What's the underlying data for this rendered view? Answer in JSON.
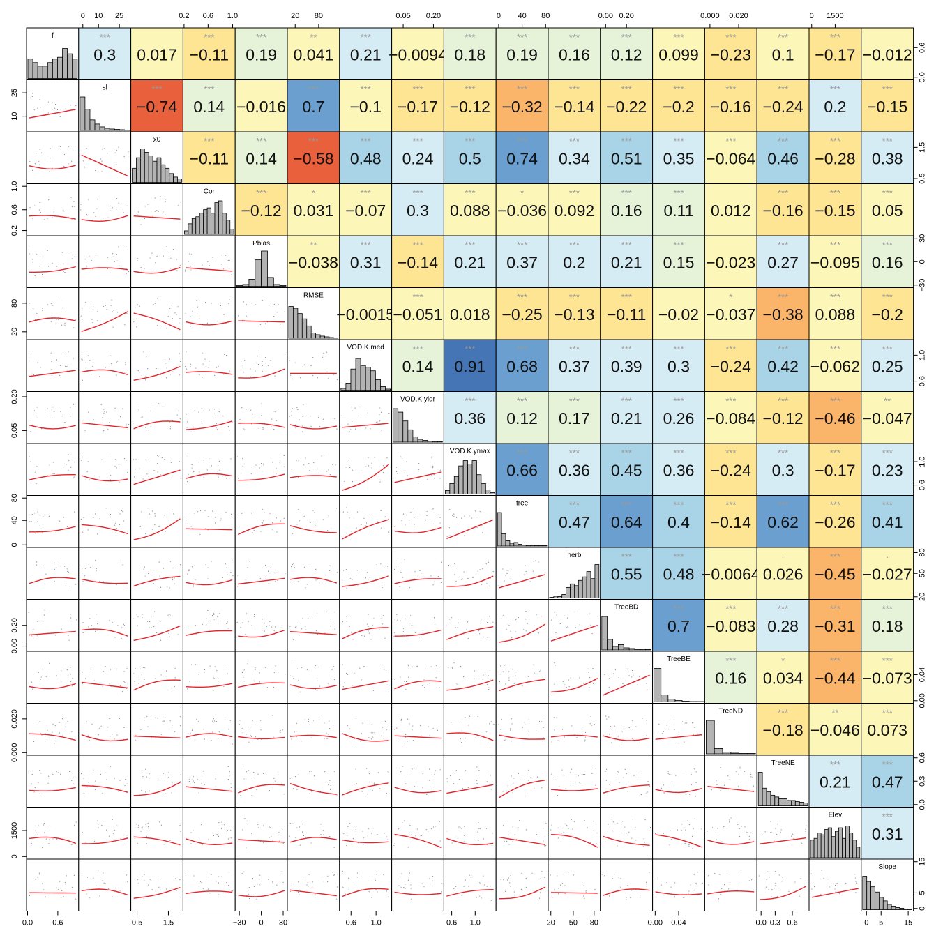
{
  "chart_data": {
    "type": "scatter-matrix",
    "variables": [
      "f",
      "sl",
      "x0",
      "Cor",
      "Pbias",
      "RMSE",
      "VOD.K.med",
      "VOD.K.yiqr",
      "VOD.K.ymax",
      "tree",
      "herb",
      "TreeBD",
      "TreeBE",
      "TreeND",
      "TreeNE",
      "Elev",
      "Slope"
    ],
    "correlations": [
      [
        null,
        "0.3",
        "0.017",
        "−0.11",
        "0.19",
        "0.041",
        "0.21",
        "−0.0094",
        "0.18",
        "0.19",
        "0.16",
        "0.12",
        "0.099",
        "−0.23",
        "0.1",
        "−0.17",
        "−0.012"
      ],
      [
        null,
        null,
        "−0.74",
        "0.14",
        "−0.016",
        "0.7",
        "−0.1",
        "−0.17",
        "−0.12",
        "−0.32",
        "−0.14",
        "−0.22",
        "−0.2",
        "−0.16",
        "−0.24",
        "0.2",
        "−0.15"
      ],
      [
        null,
        null,
        null,
        "−0.11",
        "0.14",
        "−0.58",
        "0.48",
        "0.24",
        "0.5",
        "0.74",
        "0.34",
        "0.51",
        "0.35",
        "−0.064",
        "0.46",
        "−0.28",
        "0.38"
      ],
      [
        null,
        null,
        null,
        null,
        "−0.12",
        "0.031",
        "−0.07",
        "0.3",
        "0.088",
        "−0.036",
        "0.092",
        "0.16",
        "0.11",
        "0.012",
        "−0.16",
        "−0.15",
        "0.05"
      ],
      [
        null,
        null,
        null,
        null,
        null,
        "−0.038",
        "0.31",
        "−0.14",
        "0.21",
        "0.37",
        "0.2",
        "0.21",
        "0.15",
        "−0.023",
        "0.27",
        "−0.095",
        "0.16"
      ],
      [
        null,
        null,
        null,
        null,
        null,
        null,
        "−0.0015",
        "−0.051",
        "0.018",
        "−0.25",
        "−0.13",
        "−0.11",
        "−0.02",
        "−0.037",
        "−0.38",
        "0.088",
        "−0.2"
      ],
      [
        null,
        null,
        null,
        null,
        null,
        null,
        null,
        "0.14",
        "0.91",
        "0.68",
        "0.37",
        "0.39",
        "0.3",
        "−0.24",
        "0.42",
        "−0.062",
        "0.25"
      ],
      [
        null,
        null,
        null,
        null,
        null,
        null,
        null,
        null,
        "0.36",
        "0.12",
        "0.17",
        "0.21",
        "0.26",
        "−0.084",
        "−0.12",
        "−0.46",
        "−0.047"
      ],
      [
        null,
        null,
        null,
        null,
        null,
        null,
        null,
        null,
        null,
        "0.66",
        "0.36",
        "0.45",
        "0.36",
        "−0.24",
        "0.3",
        "−0.17",
        "0.23"
      ],
      [
        null,
        null,
        null,
        null,
        null,
        null,
        null,
        null,
        null,
        null,
        "0.47",
        "0.64",
        "0.4",
        "−0.14",
        "0.62",
        "−0.26",
        "0.41"
      ],
      [
        null,
        null,
        null,
        null,
        null,
        null,
        null,
        null,
        null,
        null,
        null,
        "0.55",
        "0.48",
        "−0.0064",
        "0.026",
        "−0.45",
        "−0.027"
      ],
      [
        null,
        null,
        null,
        null,
        null,
        null,
        null,
        null,
        null,
        null,
        null,
        null,
        "0.7",
        "−0.083",
        "0.28",
        "−0.31",
        "0.18"
      ],
      [
        null,
        null,
        null,
        null,
        null,
        null,
        null,
        null,
        null,
        null,
        null,
        null,
        null,
        "0.16",
        "0.034",
        "−0.44",
        "−0.073"
      ],
      [
        null,
        null,
        null,
        null,
        null,
        null,
        null,
        null,
        null,
        null,
        null,
        null,
        null,
        null,
        "−0.18",
        "−0.046",
        "0.073"
      ],
      [
        null,
        null,
        null,
        null,
        null,
        null,
        null,
        null,
        null,
        null,
        null,
        null,
        null,
        null,
        null,
        "0.21",
        "0.47"
      ],
      [
        null,
        null,
        null,
        null,
        null,
        null,
        null,
        null,
        null,
        null,
        null,
        null,
        null,
        null,
        null,
        null,
        "0.31"
      ],
      [
        null,
        null,
        null,
        null,
        null,
        null,
        null,
        null,
        null,
        null,
        null,
        null,
        null,
        null,
        null,
        null,
        null
      ]
    ],
    "significance": [
      [
        null,
        "***",
        "",
        "***",
        "***",
        "**",
        "***",
        "",
        "***",
        "***",
        "***",
        "***",
        "***",
        "***",
        "***",
        "***",
        ""
      ],
      [
        null,
        null,
        "***",
        "***",
        "",
        "***",
        "***",
        "***",
        "***",
        "***",
        "***",
        "***",
        "***",
        "***",
        "***",
        "***",
        "***"
      ],
      [
        null,
        null,
        null,
        "***",
        "***",
        "***",
        "***",
        "***",
        "***",
        "***",
        "***",
        "***",
        "***",
        "***",
        "***",
        "***",
        "***"
      ],
      [
        null,
        null,
        null,
        null,
        "***",
        "*",
        "***",
        "***",
        "***",
        "*",
        "***",
        "***",
        "***",
        "",
        "***",
        "***",
        "***"
      ],
      [
        null,
        null,
        null,
        null,
        null,
        "**",
        "***",
        "***",
        "***",
        "***",
        "***",
        "***",
        "***",
        "",
        "***",
        "***",
        "***"
      ],
      [
        null,
        null,
        null,
        null,
        null,
        null,
        "",
        "***",
        "",
        "***",
        "***",
        "***",
        "",
        "*",
        "***",
        "***",
        "***"
      ],
      [
        null,
        null,
        null,
        null,
        null,
        null,
        null,
        "***",
        "***",
        "***",
        "***",
        "***",
        "***",
        "***",
        "***",
        "***",
        "***"
      ],
      [
        null,
        null,
        null,
        null,
        null,
        null,
        null,
        null,
        "***",
        "***",
        "***",
        "***",
        "***",
        "***",
        "***",
        "***",
        "**"
      ],
      [
        null,
        null,
        null,
        null,
        null,
        null,
        null,
        null,
        null,
        "***",
        "***",
        "***",
        "***",
        "***",
        "***",
        "***",
        "***"
      ],
      [
        null,
        null,
        null,
        null,
        null,
        null,
        null,
        null,
        null,
        null,
        "***",
        "***",
        "***",
        "***",
        "***",
        "***",
        "***"
      ],
      [
        null,
        null,
        null,
        null,
        null,
        null,
        null,
        null,
        null,
        null,
        null,
        "***",
        "***",
        "",
        "·",
        "***",
        "·"
      ],
      [
        null,
        null,
        null,
        null,
        null,
        null,
        null,
        null,
        null,
        null,
        null,
        null,
        "***",
        "***",
        "***",
        "***",
        "***"
      ],
      [
        null,
        null,
        null,
        null,
        null,
        null,
        null,
        null,
        null,
        null,
        null,
        null,
        null,
        "***",
        "*",
        "***",
        "***"
      ],
      [
        null,
        null,
        null,
        null,
        null,
        null,
        null,
        null,
        null,
        null,
        null,
        null,
        null,
        null,
        "***",
        "**",
        "***"
      ],
      [
        null,
        null,
        null,
        null,
        null,
        null,
        null,
        null,
        null,
        null,
        null,
        null,
        null,
        null,
        null,
        "***",
        "***"
      ],
      [
        null,
        null,
        null,
        null,
        null,
        null,
        null,
        null,
        null,
        null,
        null,
        null,
        null,
        null,
        null,
        null,
        "***"
      ],
      [
        null,
        null,
        null,
        null,
        null,
        null,
        null,
        null,
        null,
        null,
        null,
        null,
        null,
        null,
        null,
        null,
        null
      ]
    ],
    "histograms": [
      [
        0.55,
        0.45,
        0.35,
        0.35,
        0.45,
        0.55,
        0.6,
        0.85,
        0.7,
        0.55
      ],
      [
        0.95,
        0.6,
        0.3,
        0.18,
        0.1,
        0.06,
        0.04,
        0.03,
        0.02,
        0.01
      ],
      [
        0.4,
        0.7,
        0.95,
        0.85,
        0.75,
        0.6,
        0.7,
        0.5,
        0.4,
        0.25,
        0.15,
        0.1
      ],
      [
        0.1,
        0.3,
        0.45,
        0.5,
        0.6,
        0.7,
        0.75,
        0.6,
        0.9,
        0.95,
        0.6,
        0.4,
        0.15
      ],
      [
        0.02,
        0.05,
        0.2,
        0.75,
        1.0,
        0.25,
        0.05,
        0.02
      ],
      [
        0.9,
        0.85,
        0.7,
        0.55,
        0.35,
        0.15,
        0.1,
        0.06,
        0.04,
        0.02,
        0.01
      ],
      [
        0.05,
        0.2,
        0.6,
        0.9,
        0.7,
        0.65,
        0.55,
        0.3,
        0.1,
        0.03
      ],
      [
        0.95,
        0.85,
        0.6,
        0.35,
        0.15,
        0.08,
        0.05,
        0.03,
        0.02,
        0.01
      ],
      [
        0.1,
        0.3,
        0.5,
        0.8,
        0.95,
        0.85,
        0.95,
        0.55,
        0.3,
        0.12,
        0.04
      ],
      [
        0.95,
        0.35,
        0.15,
        0.08,
        0.1,
        0.05,
        0.03,
        0.02,
        0.02,
        0.01,
        0.01,
        0.01
      ],
      [
        0.02,
        0.05,
        0.04,
        0.1,
        0.3,
        0.4,
        0.35,
        0.5,
        0.6,
        0.75,
        0.55,
        0.95
      ],
      [
        0.95,
        0.3,
        0.1,
        0.15,
        0.06,
        0.04,
        0.02,
        0.02,
        0.01
      ],
      [
        0.95,
        0.2,
        0.08,
        0.04,
        0.02,
        0.01,
        0.01
      ],
      [
        0.95,
        0.15,
        0.05,
        0.02,
        0.01,
        0.01
      ],
      [
        0.95,
        0.5,
        0.4,
        0.3,
        0.25,
        0.2,
        0.2,
        0.15,
        0.15,
        0.12,
        0.1,
        0.08
      ],
      [
        0.5,
        0.55,
        0.7,
        0.65,
        0.8,
        0.85,
        0.6,
        0.75,
        0.85,
        0.55,
        0.9,
        0.7,
        0.5,
        0.3
      ],
      [
        0.95,
        0.8,
        0.65,
        0.5,
        0.35,
        0.25,
        0.15,
        0.1,
        0.06,
        0.04,
        0.02,
        0.01
      ]
    ],
    "axes": {
      "top": [
        {
          "col": 1,
          "labels": [
            "0",
            "10",
            "25"
          ],
          "pos": [
            0.08,
            0.38,
            0.78
          ]
        },
        {
          "col": 3,
          "labels": [
            "0.2",
            "0.6",
            "1.0"
          ],
          "pos": [
            0.02,
            0.48,
            0.95
          ]
        },
        {
          "col": 5,
          "labels": [
            "20",
            "80"
          ],
          "pos": [
            0.15,
            0.6
          ]
        },
        {
          "col": 7,
          "labels": [
            "0.05",
            "0.20"
          ],
          "pos": [
            0.22,
            0.8
          ]
        },
        {
          "col": 9,
          "labels": [
            "0",
            "40",
            "80"
          ],
          "pos": [
            0.05,
            0.5,
            0.95
          ]
        },
        {
          "col": 11,
          "labels": [
            "0.00",
            "0.20"
          ],
          "pos": [
            0.1,
            0.5
          ]
        },
        {
          "col": 13,
          "labels": [
            "0.000",
            "0.020"
          ],
          "pos": [
            0.1,
            0.65
          ]
        },
        {
          "col": 15,
          "labels": [
            "0",
            "1500"
          ],
          "pos": [
            0.05,
            0.5
          ]
        }
      ],
      "bottom": [
        {
          "col": 0,
          "labels": [
            "0.0",
            "0.6"
          ],
          "pos": [
            0.02,
            0.6
          ]
        },
        {
          "col": 2,
          "labels": [
            "0.5",
            "1.5"
          ],
          "pos": [
            0.12,
            0.72
          ]
        },
        {
          "col": 4,
          "labels": [
            "−30",
            "0",
            "30"
          ],
          "pos": [
            0.08,
            0.5,
            0.92
          ]
        },
        {
          "col": 6,
          "labels": [
            "0.6",
            "1.0"
          ],
          "pos": [
            0.22,
            0.7
          ]
        },
        {
          "col": 8,
          "labels": [
            "0.6",
            "1.0"
          ],
          "pos": [
            0.15,
            0.6
          ]
        },
        {
          "col": 10,
          "labels": [
            "20",
            "50",
            "80"
          ],
          "pos": [
            0.05,
            0.48,
            0.88
          ]
        },
        {
          "col": 12,
          "labels": [
            "0.00",
            "0.04"
          ],
          "pos": [
            0.05,
            0.5
          ]
        },
        {
          "col": 14,
          "labels": [
            "0.0",
            "0.3",
            "0.6"
          ],
          "pos": [
            0.08,
            0.35,
            0.68
          ]
        },
        {
          "col": 16,
          "labels": [
            "0",
            "5",
            "15"
          ],
          "pos": [
            0.1,
            0.38,
            0.9
          ]
        }
      ],
      "left": [
        {
          "row": 1,
          "labels": [
            "10",
            "25"
          ],
          "pos": [
            0.7,
            0.25
          ]
        },
        {
          "row": 3,
          "labels": [
            "0.2",
            "0.6",
            "1.0"
          ],
          "pos": [
            0.9,
            0.5,
            0.05
          ]
        },
        {
          "row": 5,
          "labels": [
            "20",
            "80"
          ],
          "pos": [
            0.85,
            0.3
          ]
        },
        {
          "row": 7,
          "labels": [
            "0.05",
            "0.20"
          ],
          "pos": [
            0.75,
            0.1
          ]
        },
        {
          "row": 9,
          "labels": [
            "0",
            "40",
            "80"
          ],
          "pos": [
            0.95,
            0.48,
            0.05
          ]
        },
        {
          "row": 11,
          "labels": [
            "0.00",
            "0.20"
          ],
          "pos": [
            0.9,
            0.5
          ]
        },
        {
          "row": 13,
          "labels": [
            "0.000",
            "0.020"
          ],
          "pos": [
            0.95,
            0.3
          ]
        },
        {
          "row": 15,
          "labels": [
            "0",
            "1500"
          ],
          "pos": [
            0.95,
            0.45
          ]
        }
      ],
      "right": [
        {
          "row": 0,
          "labels": [
            "0.0",
            "0.6"
          ],
          "pos": [
            0.95,
            0.38
          ]
        },
        {
          "row": 2,
          "labels": [
            "0.5",
            "1.5"
          ],
          "pos": [
            0.9,
            0.3
          ]
        },
        {
          "row": 4,
          "labels": [
            "−30",
            "0",
            "30"
          ],
          "pos": [
            0.95,
            0.5,
            0.05
          ]
        },
        {
          "row": 6,
          "labels": [
            "0.6",
            "1.0"
          ],
          "pos": [
            0.8,
            0.3
          ]
        },
        {
          "row": 8,
          "labels": [
            "0.6",
            "1.0"
          ],
          "pos": [
            0.8,
            0.35
          ]
        },
        {
          "row": 10,
          "labels": [
            "20",
            "50",
            "80"
          ],
          "pos": [
            0.95,
            0.5,
            0.1
          ]
        },
        {
          "row": 12,
          "labels": [
            "0.00",
            "0.04"
          ],
          "pos": [
            0.95,
            0.45
          ]
        },
        {
          "row": 14,
          "labels": [
            "0.0",
            "0.3",
            "0.6"
          ],
          "pos": [
            0.95,
            0.5,
            0.05
          ]
        },
        {
          "row": 16,
          "labels": [
            "0",
            "5",
            "15"
          ],
          "pos": [
            0.95,
            0.65,
            0.05
          ]
        }
      ]
    },
    "colors": {
      "strong_negative": "#e8603c",
      "negative": "#fbb56a",
      "weak_negative": "#fee594",
      "neutral": "#fcf7b8",
      "weak_positive": "#e6f3d9",
      "positive": "#d6ecf4",
      "mid_positive": "#a9d3e6",
      "strong_positive": "#6a9fcf",
      "very_strong_positive": "#4575b4",
      "fit_line": "#e3242b",
      "histogram_bar": "#b3b3b3",
      "points": "#8c8c8c"
    }
  }
}
